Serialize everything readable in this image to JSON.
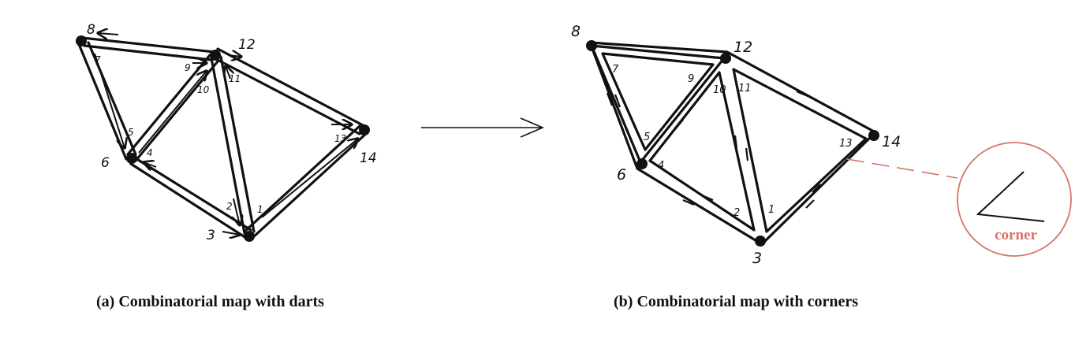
{
  "panel_a": {
    "caption": "(a)  Combinatorial map with darts",
    "vertices": [
      {
        "id": "v8",
        "label": "8"
      },
      {
        "id": "v12",
        "label": "12"
      },
      {
        "id": "v14",
        "label": "14"
      },
      {
        "id": "v6",
        "label": "6"
      },
      {
        "id": "v3",
        "label": "3"
      }
    ],
    "darts": [
      "1",
      "2",
      "4",
      "5",
      "7",
      "9",
      "10",
      "11",
      "13"
    ]
  },
  "panel_b": {
    "caption": "(b)  Combinatorial map with corners",
    "vertices": [
      {
        "id": "v8",
        "label": "8"
      },
      {
        "id": "v12",
        "label": "12"
      },
      {
        "id": "v14",
        "label": "14"
      },
      {
        "id": "v6",
        "label": "6"
      },
      {
        "id": "v3",
        "label": "3"
      }
    ],
    "corners": [
      "1",
      "2",
      "4",
      "5",
      "7",
      "9",
      "10",
      "11",
      "13"
    ],
    "callout": {
      "label": "corner",
      "color": "#d9736a"
    }
  },
  "colors": {
    "ink": "#111111",
    "accent": "#d9736a"
  }
}
